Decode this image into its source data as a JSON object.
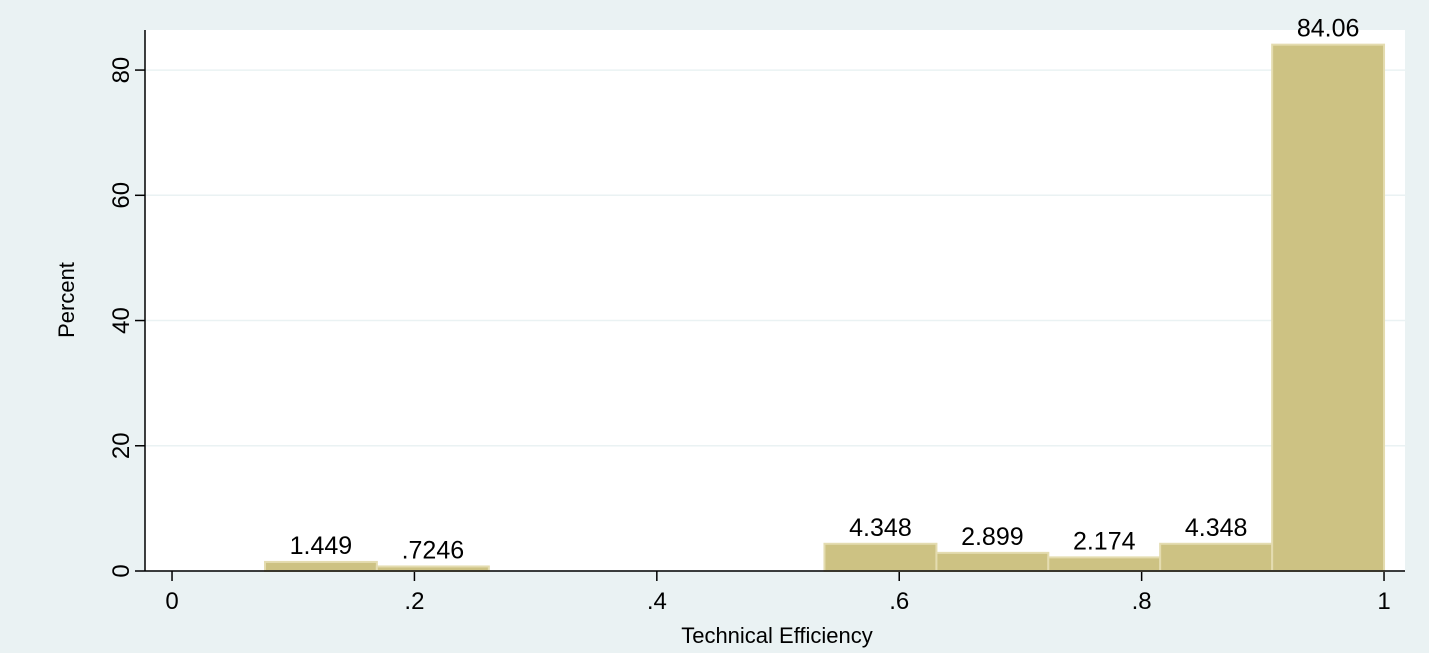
{
  "chart_data": {
    "type": "histogram",
    "xlabel": "Technical Efficiency",
    "ylabel": "Percent",
    "bins": [
      0.0767,
      0.169,
      0.2614,
      0.3537,
      0.446,
      0.5383,
      0.6307,
      0.723,
      0.8153,
      0.9077,
      1.0
    ],
    "values": [
      1.449,
      0.7246,
      0,
      0,
      0,
      4.348,
      2.899,
      2.174,
      4.348,
      84.06
    ],
    "value_labels": [
      "1.449",
      ".7246",
      null,
      null,
      null,
      "4.348",
      "2.899",
      "2.174",
      "4.348",
      "84.06"
    ],
    "color": "#cdc283",
    "xlim": [
      -0.0223,
      1.0173
    ],
    "xticks": [
      0,
      {
        "value": 0.2,
        "label": ".2"
      },
      {
        "value": 0.4,
        "label": ".4"
      },
      {
        "value": 0.6,
        "label": ".6"
      },
      {
        "value": 0.8,
        "label": ".8"
      },
      1
    ],
    "ylim": [
      0,
      86.4
    ],
    "yticks": [
      0,
      20,
      40,
      60,
      80
    ],
    "grid": true
  }
}
